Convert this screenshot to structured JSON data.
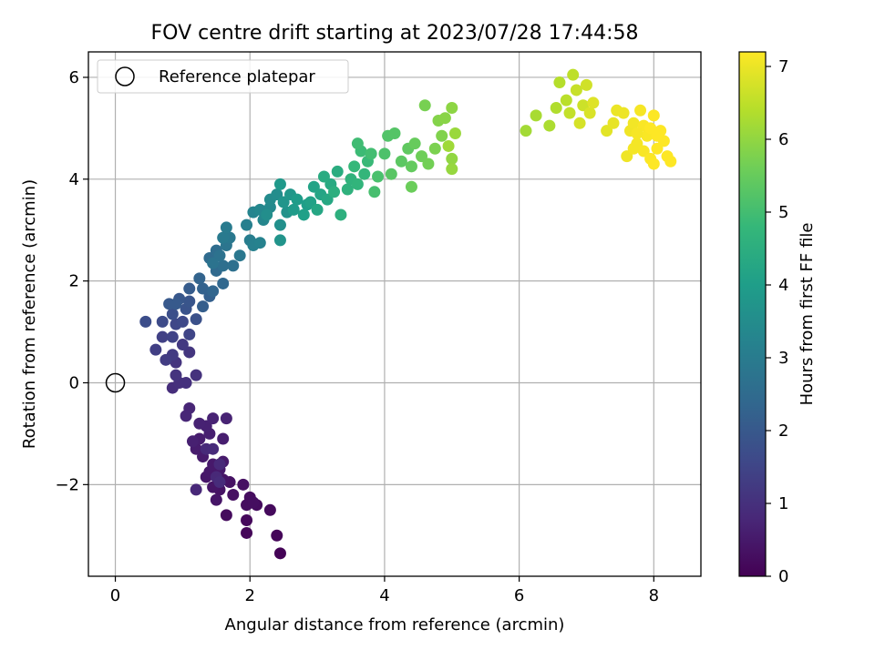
{
  "chart_data": {
    "type": "scatter",
    "title": "FOV centre drift starting at 2023/07/28 17:44:58",
    "xlabel": "Angular distance from reference (arcmin)",
    "ylabel": "Rotation from reference (arcmin)",
    "xlim": [
      -0.4,
      8.7
    ],
    "ylim": [
      -3.8,
      6.5
    ],
    "xticks": [
      0,
      2,
      4,
      6,
      8
    ],
    "yticks": [
      -2,
      0,
      2,
      4,
      6
    ],
    "xtick_labels": [
      "0",
      "2",
      "4",
      "6",
      "8"
    ],
    "ytick_labels": [
      "−2",
      "0",
      "2",
      "4",
      "6"
    ],
    "grid": true,
    "legend": {
      "position": "upper-left",
      "label": "Reference platepar"
    },
    "reference_point": {
      "x": 0,
      "y": 0
    },
    "colorbar": {
      "label": "Hours from first FF file",
      "range": [
        0,
        7.2
      ],
      "ticks": [
        0,
        1,
        2,
        3,
        4,
        5,
        6,
        7
      ],
      "tick_labels": [
        "0",
        "1",
        "2",
        "3",
        "4",
        "5",
        "6",
        "7"
      ],
      "colormap": "viridis",
      "stops": [
        "#440154",
        "#482878",
        "#3e4989",
        "#31688e",
        "#26828e",
        "#1f9e89",
        "#35b779",
        "#6ece58",
        "#b5de2b",
        "#fde725"
      ]
    },
    "points": [
      [
        2.45,
        -3.35,
        0.05
      ],
      [
        2.4,
        -3.0,
        0.1
      ],
      [
        1.95,
        -2.95,
        0.12
      ],
      [
        1.95,
        -2.7,
        0.15
      ],
      [
        2.3,
        -2.5,
        0.18
      ],
      [
        1.65,
        -2.6,
        0.2
      ],
      [
        2.1,
        -2.4,
        0.22
      ],
      [
        2.0,
        -2.25,
        0.24
      ],
      [
        1.95,
        -2.4,
        0.25
      ],
      [
        2.05,
        -2.35,
        0.27
      ],
      [
        1.75,
        -2.2,
        0.3
      ],
      [
        1.9,
        -2.0,
        0.32
      ],
      [
        1.7,
        -1.95,
        0.34
      ],
      [
        1.55,
        -2.1,
        0.36
      ],
      [
        1.6,
        -1.9,
        0.38
      ],
      [
        1.45,
        -2.05,
        0.4
      ],
      [
        1.5,
        -2.3,
        0.42
      ],
      [
        1.35,
        -1.85,
        0.44
      ],
      [
        1.4,
        -1.75,
        0.46
      ],
      [
        1.55,
        -1.7,
        0.48
      ],
      [
        1.45,
        -1.6,
        0.5
      ],
      [
        1.6,
        -1.55,
        0.52
      ],
      [
        1.3,
        -1.45,
        0.54
      ],
      [
        1.2,
        -1.3,
        0.56
      ],
      [
        1.25,
        -1.1,
        0.58
      ],
      [
        1.6,
        -1.1,
        0.6
      ],
      [
        1.4,
        -1.0,
        0.62
      ],
      [
        1.15,
        -1.15,
        0.64
      ],
      [
        1.35,
        -0.85,
        0.66
      ],
      [
        1.25,
        -0.8,
        0.68
      ],
      [
        1.45,
        -0.7,
        0.7
      ],
      [
        1.65,
        -0.7,
        0.72
      ],
      [
        1.1,
        -0.5,
        0.75
      ],
      [
        1.05,
        -0.65,
        0.78
      ],
      [
        1.2,
        -2.1,
        0.8
      ],
      [
        1.5,
        -1.85,
        0.82
      ],
      [
        1.55,
        -1.6,
        0.84
      ],
      [
        1.35,
        -1.3,
        0.86
      ],
      [
        1.45,
        -1.3,
        0.88
      ],
      [
        1.55,
        -1.95,
        0.9
      ],
      [
        0.85,
        -0.1,
        0.95
      ],
      [
        0.95,
        0.0,
        1.0
      ],
      [
        1.05,
        0.0,
        1.02
      ],
      [
        1.2,
        0.15,
        1.05
      ],
      [
        0.9,
        0.15,
        1.08
      ],
      [
        0.9,
        0.4,
        1.1
      ],
      [
        1.1,
        0.6,
        1.15
      ],
      [
        1.0,
        0.75,
        1.2
      ],
      [
        0.85,
        0.55,
        1.25
      ],
      [
        0.75,
        0.45,
        1.3
      ],
      [
        0.6,
        0.65,
        1.35
      ],
      [
        0.7,
        0.9,
        1.4
      ],
      [
        0.85,
        0.9,
        1.45
      ],
      [
        1.1,
        0.95,
        1.5
      ],
      [
        0.9,
        1.15,
        1.55
      ],
      [
        1.0,
        1.2,
        1.6
      ],
      [
        0.7,
        1.2,
        1.65
      ],
      [
        0.45,
        1.2,
        1.7
      ],
      [
        0.85,
        1.35,
        1.75
      ],
      [
        1.2,
        1.25,
        1.8
      ],
      [
        1.05,
        1.45,
        1.85
      ],
      [
        1.1,
        1.6,
        1.9
      ],
      [
        0.95,
        1.65,
        1.95
      ],
      [
        0.8,
        1.55,
        2.0
      ],
      [
        0.9,
        1.55,
        2.05
      ],
      [
        1.1,
        1.85,
        2.1
      ],
      [
        1.3,
        1.5,
        2.15
      ],
      [
        1.4,
        1.7,
        2.2
      ],
      [
        1.3,
        1.85,
        2.25
      ],
      [
        1.25,
        2.05,
        2.3
      ],
      [
        1.45,
        1.8,
        2.35
      ],
      [
        1.6,
        1.95,
        2.4
      ],
      [
        1.5,
        2.2,
        2.45
      ],
      [
        1.4,
        2.45,
        2.5
      ],
      [
        1.5,
        2.6,
        2.55
      ],
      [
        1.6,
        2.3,
        2.6
      ],
      [
        1.75,
        2.3,
        2.65
      ],
      [
        1.55,
        2.5,
        2.7
      ],
      [
        1.45,
        2.35,
        2.75
      ],
      [
        1.65,
        2.7,
        2.8
      ],
      [
        1.85,
        2.5,
        2.85
      ],
      [
        1.7,
        2.85,
        2.9
      ],
      [
        1.6,
        2.85,
        2.95
      ],
      [
        1.65,
        3.05,
        3.0
      ],
      [
        2.0,
        2.8,
        3.05
      ],
      [
        1.95,
        3.1,
        3.1
      ],
      [
        2.05,
        2.7,
        3.15
      ],
      [
        2.15,
        2.75,
        3.2
      ],
      [
        2.05,
        3.35,
        3.25
      ],
      [
        2.2,
        3.2,
        3.3
      ],
      [
        2.15,
        3.4,
        3.35
      ],
      [
        2.3,
        3.45,
        3.4
      ],
      [
        2.3,
        3.6,
        3.45
      ],
      [
        2.4,
        3.7,
        3.5
      ],
      [
        2.25,
        3.3,
        3.55
      ],
      [
        2.45,
        3.1,
        3.6
      ],
      [
        2.55,
        3.35,
        3.65
      ],
      [
        2.45,
        2.8,
        3.7
      ],
      [
        2.5,
        3.55,
        3.75
      ],
      [
        2.6,
        3.7,
        3.8
      ],
      [
        2.45,
        3.9,
        3.85
      ],
      [
        2.65,
        3.4,
        3.9
      ],
      [
        2.7,
        3.6,
        3.95
      ],
      [
        2.85,
        3.5,
        4.0
      ],
      [
        2.8,
        3.3,
        4.05
      ],
      [
        2.9,
        3.55,
        4.1
      ],
      [
        2.95,
        3.85,
        4.15
      ],
      [
        3.05,
        3.7,
        4.2
      ],
      [
        3.0,
        3.4,
        4.25
      ],
      [
        3.15,
        3.6,
        4.3
      ],
      [
        3.2,
        3.9,
        4.35
      ],
      [
        3.1,
        4.05,
        4.4
      ],
      [
        3.3,
        4.15,
        4.45
      ],
      [
        3.25,
        3.75,
        4.5
      ],
      [
        3.35,
        3.3,
        4.55
      ],
      [
        3.45,
        3.8,
        4.6
      ],
      [
        3.5,
        4.0,
        4.65
      ],
      [
        3.6,
        3.9,
        4.7
      ],
      [
        3.7,
        4.1,
        4.75
      ],
      [
        3.55,
        4.25,
        4.8
      ],
      [
        3.75,
        4.35,
        4.85
      ],
      [
        3.65,
        4.55,
        4.9
      ],
      [
        3.6,
        4.7,
        4.95
      ],
      [
        3.8,
        4.5,
        5.0
      ],
      [
        3.85,
        3.75,
        5.05
      ],
      [
        3.9,
        4.05,
        5.1
      ],
      [
        4.0,
        4.5,
        5.15
      ],
      [
        4.05,
        4.85,
        5.2
      ],
      [
        4.15,
        4.9,
        5.25
      ],
      [
        4.1,
        4.1,
        5.3
      ],
      [
        4.25,
        4.35,
        5.35
      ],
      [
        4.35,
        4.6,
        5.4
      ],
      [
        4.4,
        4.25,
        5.45
      ],
      [
        4.45,
        4.7,
        5.5
      ],
      [
        4.4,
        3.85,
        5.55
      ],
      [
        4.55,
        4.45,
        5.6
      ],
      [
        4.65,
        4.3,
        5.65
      ],
      [
        4.6,
        5.45,
        5.7
      ],
      [
        4.75,
        4.6,
        5.75
      ],
      [
        4.85,
        4.85,
        5.8
      ],
      [
        4.8,
        5.15,
        5.85
      ],
      [
        4.9,
        5.2,
        5.9
      ],
      [
        5.0,
        5.4,
        5.95
      ],
      [
        5.0,
        4.4,
        6.0
      ],
      [
        5.0,
        4.2,
        6.05
      ],
      [
        5.05,
        4.9,
        6.1
      ],
      [
        4.95,
        4.65,
        6.15
      ],
      [
        6.1,
        4.95,
        6.2
      ],
      [
        6.25,
        5.25,
        6.25
      ],
      [
        6.45,
        5.05,
        6.3
      ],
      [
        6.55,
        5.4,
        6.35
      ],
      [
        6.6,
        5.9,
        6.4
      ],
      [
        6.7,
        5.55,
        6.45
      ],
      [
        6.8,
        6.05,
        6.5
      ],
      [
        6.75,
        5.3,
        6.55
      ],
      [
        6.85,
        5.75,
        6.6
      ],
      [
        6.95,
        5.45,
        6.65
      ],
      [
        7.0,
        5.85,
        6.7
      ],
      [
        6.9,
        5.1,
        6.75
      ],
      [
        7.05,
        5.3,
        6.8
      ],
      [
        7.1,
        5.5,
        6.85
      ],
      [
        7.3,
        4.95,
        6.9
      ],
      [
        7.4,
        5.1,
        6.95
      ],
      [
        7.45,
        5.35,
        7.0
      ],
      [
        7.55,
        5.3,
        7.02
      ],
      [
        7.6,
        4.45,
        7.04
      ],
      [
        7.65,
        4.95,
        7.06
      ],
      [
        7.7,
        5.1,
        7.08
      ],
      [
        7.75,
        4.7,
        7.1
      ],
      [
        7.8,
        5.35,
        7.12
      ],
      [
        7.85,
        4.55,
        7.14
      ],
      [
        7.9,
        4.85,
        7.16
      ],
      [
        7.95,
        4.4,
        7.18
      ],
      [
        8.0,
        5.25,
        7.19
      ],
      [
        8.05,
        4.6,
        7.2
      ],
      [
        8.1,
        4.95,
        7.2
      ],
      [
        8.15,
        4.75,
        7.2
      ],
      [
        8.2,
        4.45,
        7.2
      ],
      [
        8.25,
        4.35,
        7.2
      ],
      [
        8.0,
        4.3,
        7.2
      ],
      [
        7.85,
        5.05,
        7.15
      ],
      [
        7.7,
        4.6,
        7.1
      ],
      [
        7.95,
        5.0,
        7.2
      ],
      [
        8.05,
        4.85,
        7.2
      ],
      [
        7.75,
        4.9,
        7.12
      ]
    ]
  }
}
